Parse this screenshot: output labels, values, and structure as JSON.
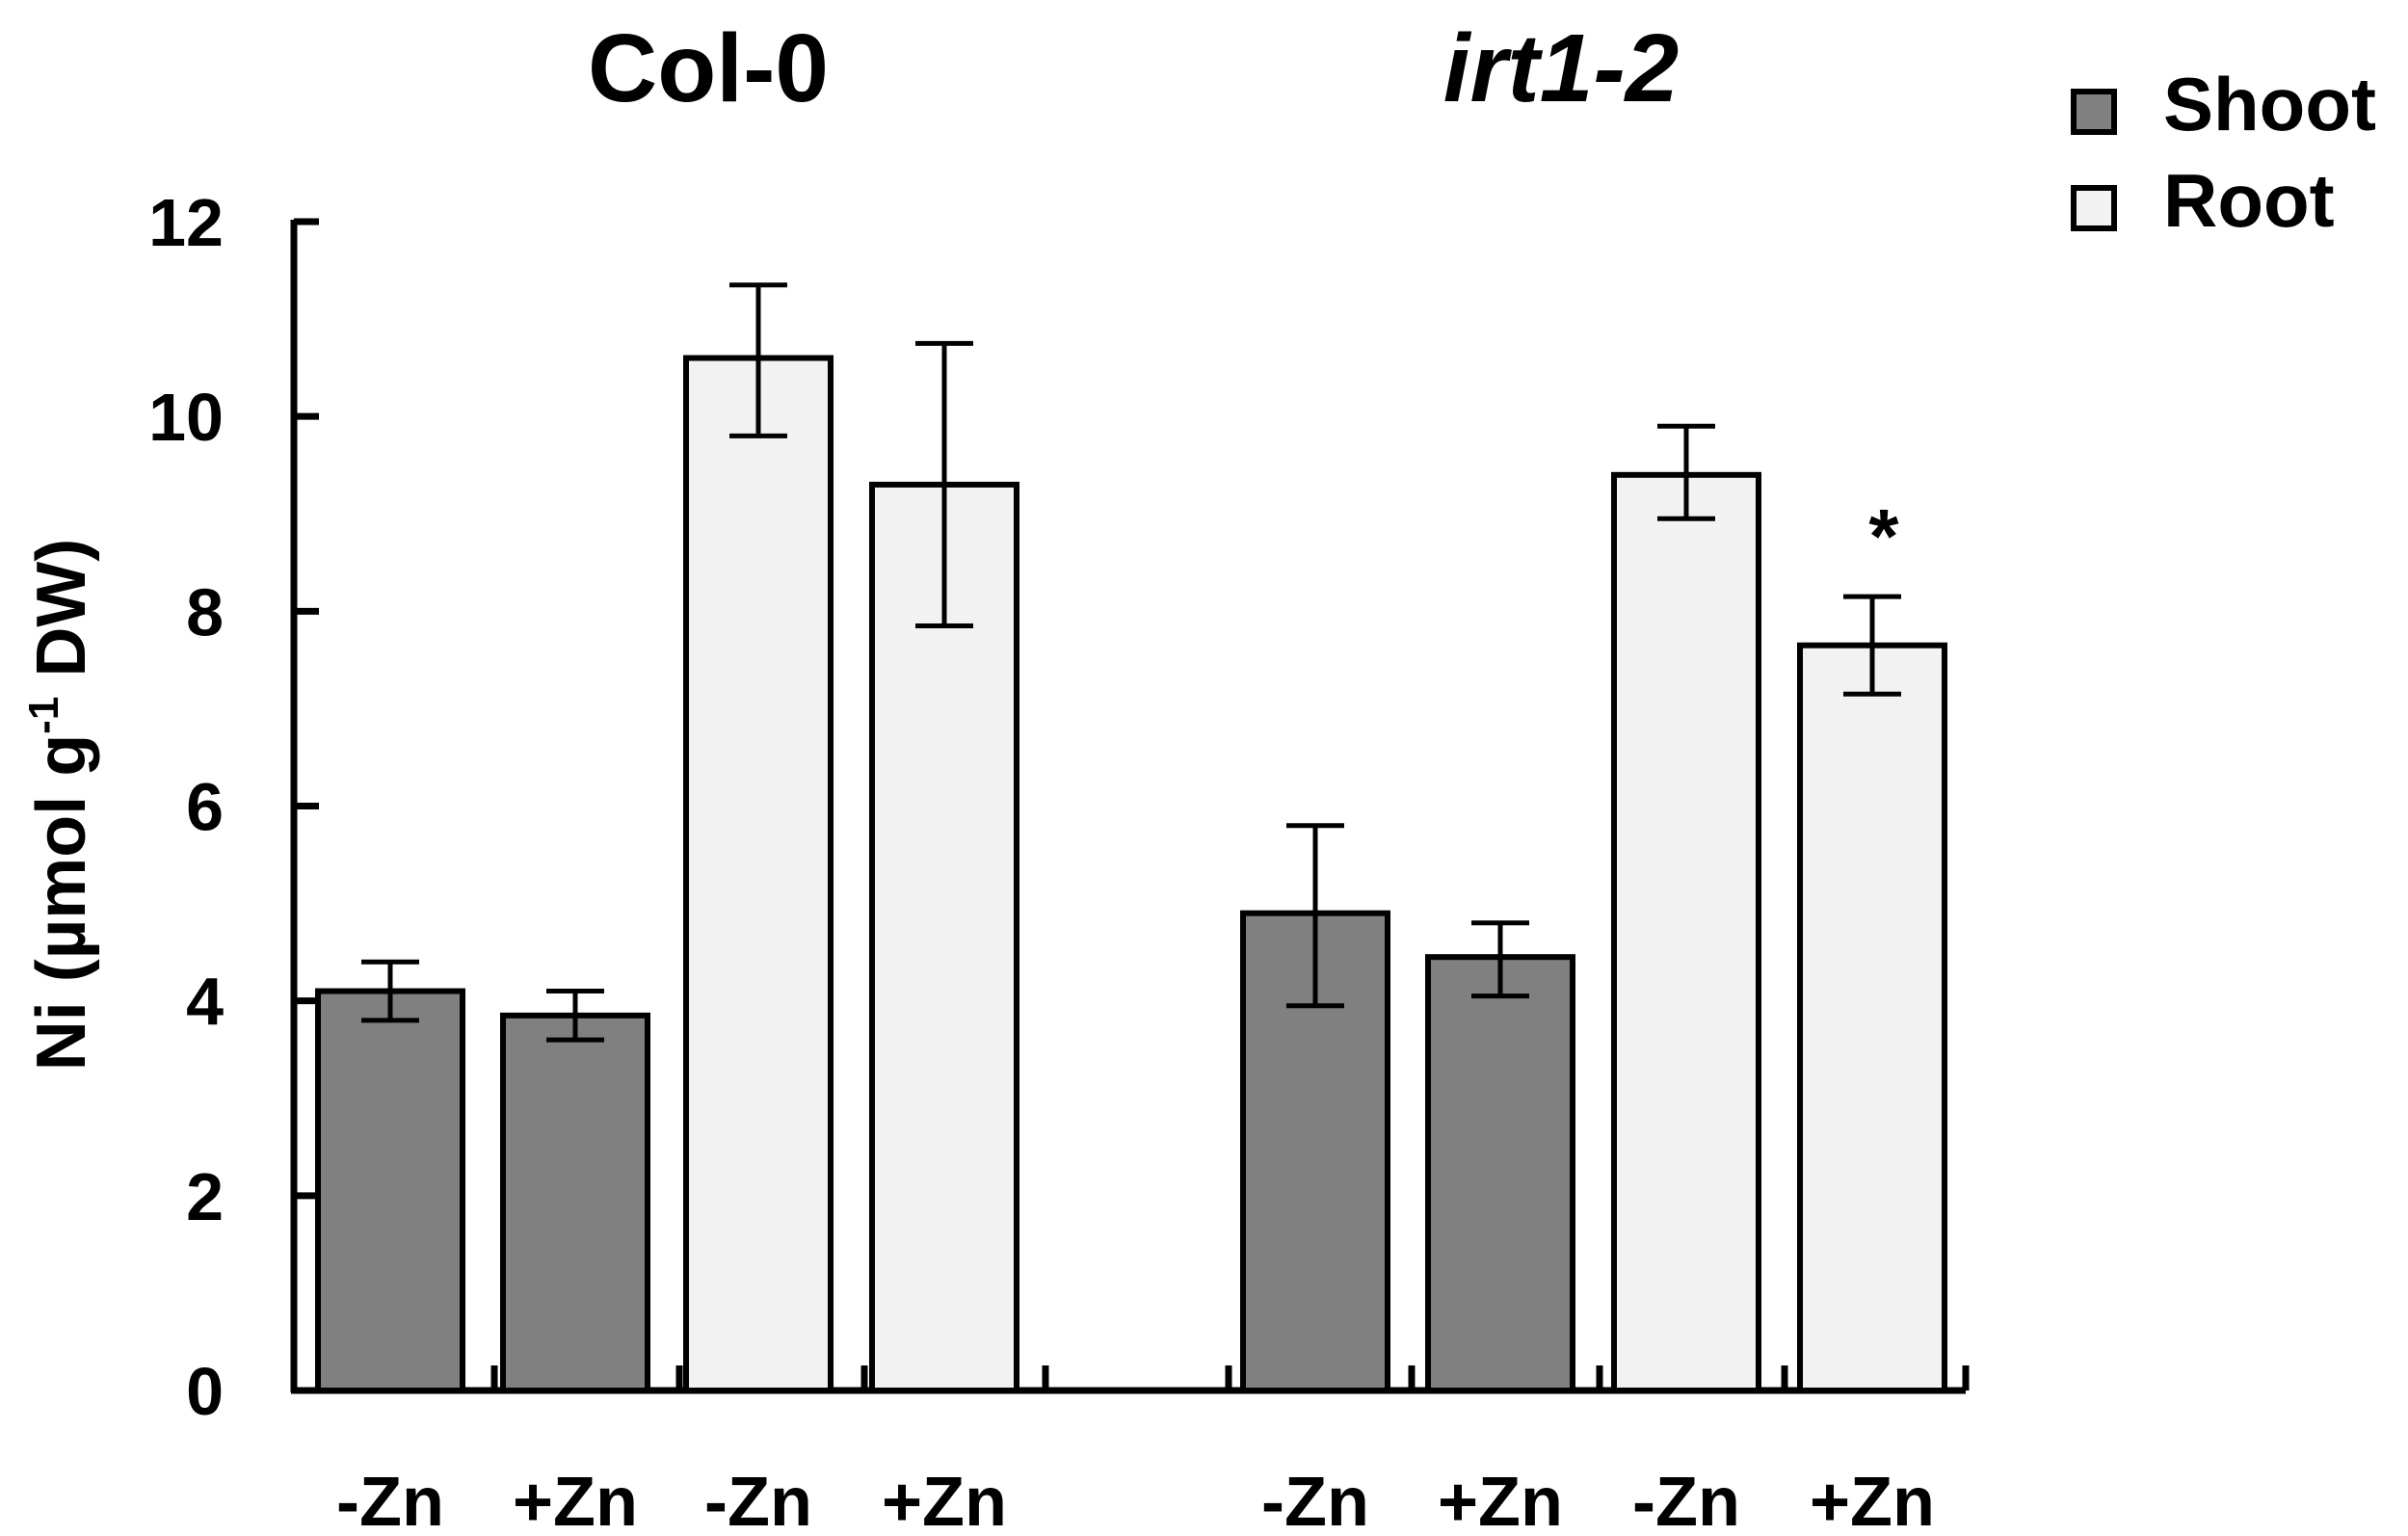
{
  "chart_data": {
    "type": "bar",
    "title": "",
    "xlabel": "",
    "ylabel_main": "Ni (µmol g",
    "ylabel_sup": "-1",
    "ylabel_tail": " DW)",
    "ylim": [
      0,
      12
    ],
    "y_ticks": [
      "0",
      "2",
      "4",
      "6",
      "8",
      "10",
      "12"
    ],
    "groups": [
      {
        "name": "Col-0",
        "italic": false
      },
      {
        "name": "irt1-2",
        "italic": true
      }
    ],
    "legend": [
      {
        "name": "Shoot",
        "color": "#808080"
      },
      {
        "name": "Root",
        "color": "#f2f2f2"
      }
    ],
    "bars": [
      {
        "group": "Col-0",
        "series": "Shoot",
        "label": "-Zn",
        "value": 4.1,
        "err_low": 3.8,
        "err_high": 4.4
      },
      {
        "group": "Col-0",
        "series": "Shoot",
        "label": "+Zn",
        "value": 3.85,
        "err_low": 3.6,
        "err_high": 4.1
      },
      {
        "group": "Col-0",
        "series": "Root",
        "label": "-Zn",
        "value": 10.6,
        "err_low": 9.8,
        "err_high": 11.35
      },
      {
        "group": "Col-0",
        "series": "Root",
        "label": "+Zn",
        "value": 9.3,
        "err_low": 7.85,
        "err_high": 10.75
      },
      {
        "group": "irt1-2",
        "series": "Shoot",
        "label": "-Zn",
        "value": 4.9,
        "err_low": 3.95,
        "err_high": 5.8
      },
      {
        "group": "irt1-2",
        "series": "Shoot",
        "label": "+Zn",
        "value": 4.45,
        "err_low": 4.05,
        "err_high": 4.8
      },
      {
        "group": "irt1-2",
        "series": "Root",
        "label": "-Zn",
        "value": 9.4,
        "err_low": 8.95,
        "err_high": 9.9
      },
      {
        "group": "irt1-2",
        "series": "Root",
        "label": "+Zn",
        "value": 7.65,
        "err_low": 7.15,
        "err_high": 8.15,
        "annotation": "*"
      }
    ]
  }
}
